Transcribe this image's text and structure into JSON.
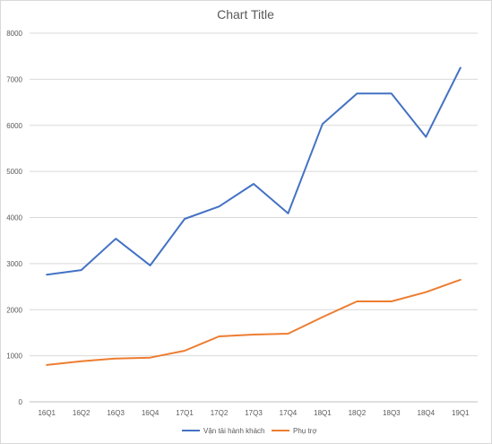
{
  "chart_data": {
    "type": "line",
    "title": "Chart Title",
    "xlabel": "",
    "ylabel": "",
    "categories": [
      "16Q1",
      "16Q2",
      "16Q3",
      "16Q4",
      "17Q1",
      "17Q2",
      "17Q3",
      "17Q4",
      "18Q1",
      "18Q2",
      "18Q3",
      "18Q4",
      "19Q1"
    ],
    "ylim": [
      0,
      8000
    ],
    "yticks": [
      0,
      1000,
      2000,
      3000,
      4000,
      5000,
      6000,
      7000,
      8000
    ],
    "grid": true,
    "legend": "bottom",
    "series": [
      {
        "name": "Vận tải hành khách",
        "color": "#4472c4",
        "values": [
          2760,
          2860,
          3540,
          2960,
          3970,
          4240,
          4730,
          4090,
          6030,
          6690,
          6690,
          5750,
          7250
        ]
      },
      {
        "name": "Phụ trợ",
        "color": "#ed7d31",
        "values": [
          800,
          880,
          940,
          960,
          1110,
          1420,
          1460,
          1480,
          1840,
          2180,
          2180,
          2380,
          2650
        ]
      }
    ]
  }
}
